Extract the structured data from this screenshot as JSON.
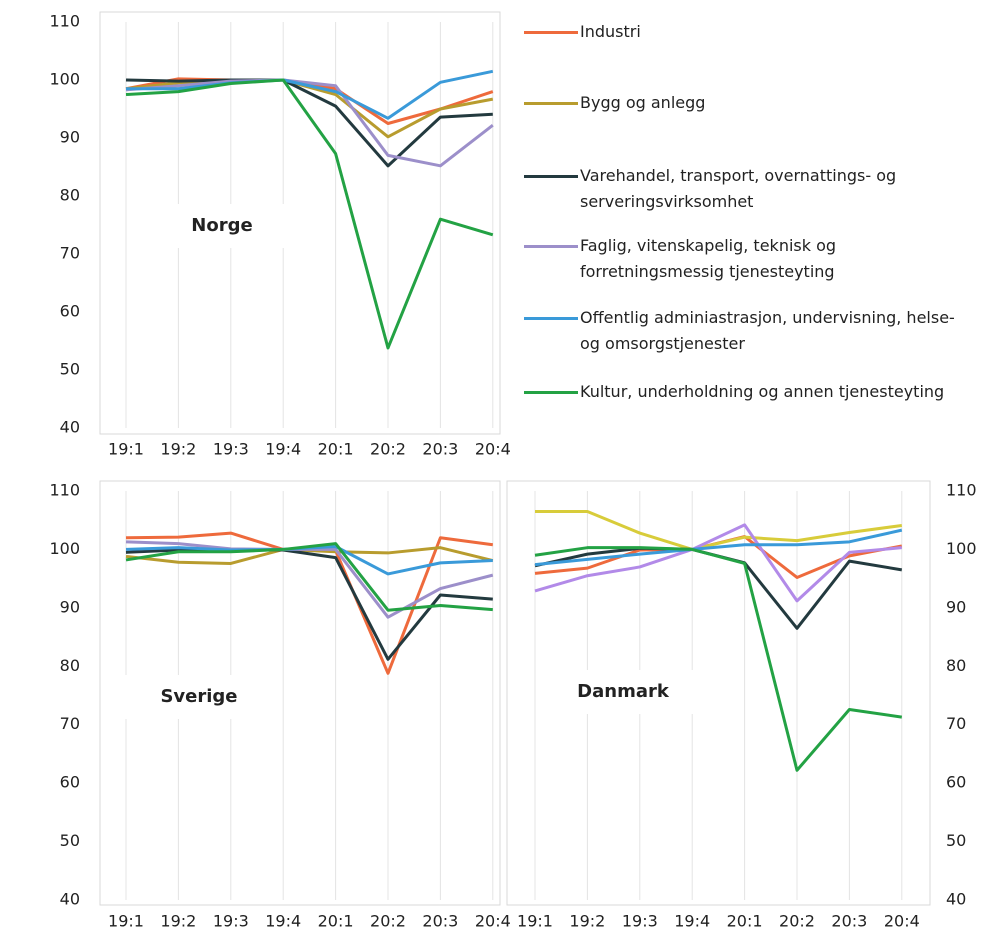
{
  "chart_data": [
    {
      "type": "line",
      "title": "Norge",
      "categories": [
        "19:1",
        "19:2",
        "19:3",
        "19:4",
        "20:1",
        "20:2",
        "20:3",
        "20:4"
      ],
      "ylim": [
        40,
        110
      ],
      "yticks": [
        40,
        50,
        60,
        70,
        80,
        90,
        100,
        110
      ],
      "yaxis": "left",
      "grid": "x",
      "series": [
        {
          "name": "Industri",
          "color": "#ee6a3c",
          "values": [
            98.5,
            100.2,
            100,
            100,
            98.5,
            92.5,
            95,
            98
          ]
        },
        {
          "name": "Bygg og anlegg",
          "color": "#b89c2e",
          "values": [
            98.5,
            99.5,
            99.8,
            100,
            97.5,
            90.2,
            95,
            96.7
          ]
        },
        {
          "name": "Varehandel, transport, overnattings- og serveringsvirksomhet",
          "color": "#233a3f",
          "values": [
            100,
            99.8,
            100,
            100,
            95.5,
            85.2,
            93.6,
            94.1
          ]
        },
        {
          "name": "Faglig, vitenskapelig, teknisk og forretningsmessig tjenesteyting",
          "color": "#9c8fca",
          "values": [
            98.3,
            99,
            99.8,
            100,
            99,
            87,
            85.2,
            92.2
          ]
        },
        {
          "name": "Offentlig adminiastrasjon, undervisning, helse- og omsorgstjenester",
          "color": "#3a9ad9",
          "values": [
            98.5,
            98.5,
            99.5,
            100,
            98,
            93.4,
            99.6,
            101.5
          ]
        },
        {
          "name": "Kultur, underholdning og annen tjenesteyting",
          "color": "#23a244",
          "values": [
            97.5,
            98,
            99.4,
            100,
            87.3,
            53.8,
            76,
            73.3
          ]
        }
      ]
    },
    {
      "type": "line",
      "title": "Sverige",
      "categories": [
        "19:1",
        "19:2",
        "19:3",
        "19:4",
        "20:1",
        "20:2",
        "20:3",
        "20:4"
      ],
      "ylim": [
        40,
        110
      ],
      "yticks": [
        40,
        50,
        60,
        70,
        80,
        90,
        100,
        110
      ],
      "yaxis": "left",
      "grid": "x",
      "series": [
        {
          "name": "Industri",
          "color": "#ee6a3c",
          "values": [
            102,
            102.1,
            102.8,
            100,
            99.8,
            78.8,
            102,
            100.8
          ]
        },
        {
          "name": "Bygg og anlegg",
          "color": "#b89c2e",
          "values": [
            98.8,
            97.8,
            97.6,
            100,
            99.6,
            99.4,
            100.3,
            98.1
          ]
        },
        {
          "name": "Varehandel, transport, overnattings- og serveringsvirksomhet",
          "color": "#233a3f",
          "values": [
            99.5,
            99.9,
            100,
            99.9,
            98.6,
            81.2,
            92.2,
            91.5
          ]
        },
        {
          "name": "Faglig, vitenskapelig, teknisk og forretningsmessig tjenesteyting",
          "color": "#9c8fca",
          "values": [
            101.3,
            101,
            100.1,
            100,
            100,
            88.4,
            93.3,
            95.6
          ]
        },
        {
          "name": "Offentlig adminiastrasjon, undervisning, helse- og omsorgstjenester",
          "color": "#3a9ad9",
          "values": [
            100,
            100.3,
            99.9,
            100,
            100.5,
            95.8,
            97.7,
            98.1
          ]
        },
        {
          "name": "Kultur, underholdning og annen tjenesteyting",
          "color": "#23a244",
          "values": [
            98.2,
            99.6,
            99.6,
            100,
            101,
            89.6,
            90.4,
            89.7
          ]
        }
      ]
    },
    {
      "type": "line",
      "title": "Danmark",
      "categories": [
        "19:1",
        "19:2",
        "19:3",
        "19:4",
        "20:1",
        "20:2",
        "20:3",
        "20:4"
      ],
      "ylim": [
        40,
        110
      ],
      "yticks": [
        40,
        50,
        60,
        70,
        80,
        90,
        100,
        110
      ],
      "yaxis": "right",
      "grid": "x",
      "series": [
        {
          "name": "Industri",
          "color": "#ee6a3c",
          "values": [
            95.9,
            96.8,
            99.9,
            100,
            102.2,
            95.2,
            98.9,
            100.6
          ]
        },
        {
          "name": "Bygg og anlegg",
          "color": "#d8cc3a",
          "values": [
            106.5,
            106.5,
            102.8,
            100,
            102.1,
            101.5,
            102.9,
            104.1
          ]
        },
        {
          "name": "Varehandel, transport, overnattings- og serveringsvirksomhet",
          "color": "#233a3f",
          "values": [
            97.2,
            99.2,
            100.2,
            100,
            97.7,
            86.5,
            98,
            96.5
          ]
        },
        {
          "name": "Faglig, vitenskapelig, teknisk og forretningsmessig tjenesteyting",
          "color": "#b28ae8",
          "values": [
            92.9,
            95.5,
            97,
            100,
            104.2,
            91.2,
            99.5,
            100.3
          ]
        },
        {
          "name": "Offentlig adminiastrasjon, undervisning, helse- og omsorgstjenester",
          "color": "#3a9ad9",
          "values": [
            97.4,
            98.3,
            99.2,
            100,
            100.8,
            100.8,
            101.3,
            103.3
          ]
        },
        {
          "name": "Kultur, underholdning og annen tjenesteyting",
          "color": "#23a244",
          "values": [
            99,
            100.3,
            100.3,
            100,
            97.6,
            62.2,
            72.6,
            71.3
          ]
        }
      ]
    }
  ]
}
